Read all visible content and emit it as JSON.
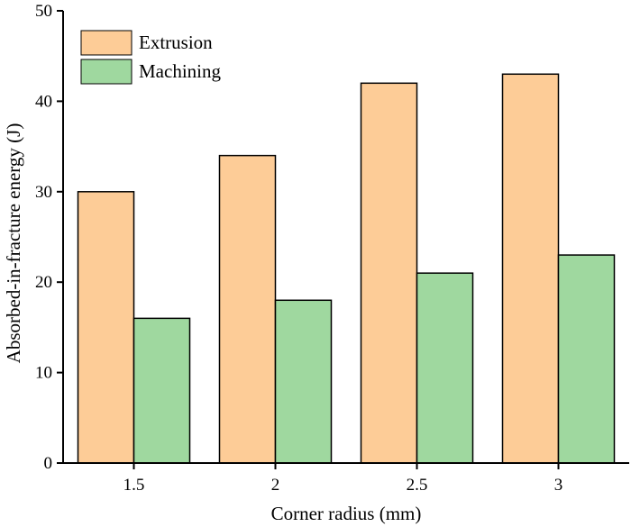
{
  "chart_data": {
    "type": "bar",
    "title": "",
    "xlabel": "Corner radius (mm)",
    "ylabel": "Absorbed-in-fracture energy (J)",
    "categories": [
      "1.5",
      "2",
      "2.5",
      "3"
    ],
    "series": [
      {
        "name": "Extrusion",
        "values": [
          30,
          34,
          42,
          43
        ],
        "color": "#FDCC97"
      },
      {
        "name": "Machining",
        "values": [
          16,
          18,
          21,
          23
        ],
        "color": "#9FD89F"
      }
    ],
    "ylim": [
      0,
      50
    ],
    "yticks": [
      "0",
      "10",
      "20",
      "30",
      "40",
      "50"
    ],
    "grid": false,
    "legend_position": "top-left"
  }
}
